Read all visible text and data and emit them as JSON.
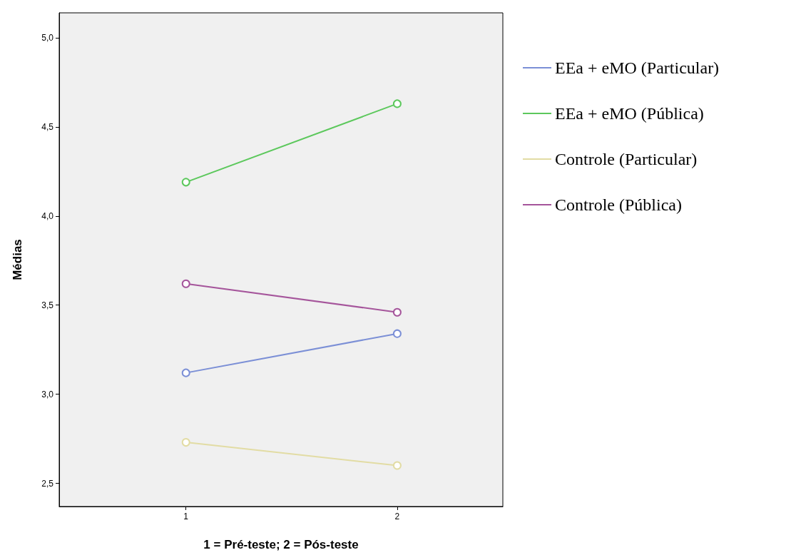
{
  "chart_data": {
    "type": "line",
    "xlabel": "1 = Pré-teste; 2 = Pós-teste",
    "ylabel": "Médias",
    "x": [
      1,
      2
    ],
    "series": [
      {
        "name": "EEa + eMO (Particular)",
        "color": "#7b8fd6",
        "values": [
          3.12,
          3.34
        ]
      },
      {
        "name": "EEa + eMO (Pública)",
        "color": "#5cc85c",
        "values": [
          4.19,
          4.63
        ]
      },
      {
        "name": "Controle (Particular)",
        "color": "#e2dca4",
        "values": [
          2.73,
          2.6
        ]
      },
      {
        "name": "Controle (Pública)",
        "color": "#a5559b",
        "values": [
          3.62,
          3.46
        ]
      }
    ],
    "xlim": [
      0.4,
      2.5
    ],
    "xticks": [
      1,
      2
    ],
    "ylim": [
      2.37,
      5.14
    ],
    "yticks": [
      {
        "value": 2.5,
        "label": "2,5"
      },
      {
        "value": 3,
        "label": "3,0"
      },
      {
        "value": 3.5,
        "label": "3,5"
      },
      {
        "value": 4,
        "label": "4,0"
      },
      {
        "value": 4.5,
        "label": "4,5"
      },
      {
        "value": 5,
        "label": "5,0"
      }
    ],
    "marker": "circle",
    "line_style": "solid",
    "grid": false,
    "legend": "top right"
  }
}
